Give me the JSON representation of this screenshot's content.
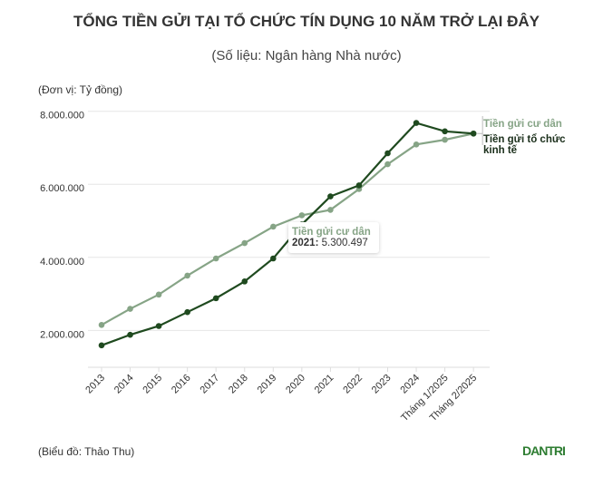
{
  "chart_data": {
    "type": "line",
    "title": "TỔNG TIỀN GỬI TẠI TỔ CHỨC TÍN DỤNG 10 NĂM TRỞ LẠI ĐÂY",
    "subtitle": "(Số liệu: Ngân hàng Nhà nước)",
    "ylabel": "(Đơn vị: Tỷ đồng)",
    "source": "(Biểu đồ: Thảo Thu)",
    "categories": [
      "2013",
      "2014",
      "2015",
      "2016",
      "2017",
      "2018",
      "2019",
      "2020",
      "2021",
      "2022",
      "2023",
      "2024",
      "Tháng 1/2025",
      "Tháng 2/2025"
    ],
    "yticks": [
      2000000,
      4000000,
      6000000,
      8000000
    ],
    "ytick_labels": [
      "2.000.000",
      "4.000.000",
      "6.000.000",
      "8.000.000"
    ],
    "ylim": [
      1000000,
      8350000
    ],
    "grid": true,
    "legend_placement": "right end labels",
    "series": [
      {
        "name": "Tiền gửi cư dân",
        "color": "#86a486",
        "values": [
          2150000,
          2590000,
          2980000,
          3500000,
          3970000,
          4390000,
          4840000,
          5150000,
          5300497,
          5870000,
          6550000,
          7090000,
          7220000,
          7390000
        ]
      },
      {
        "name": "Tiền gửi tổ chức kinh tế",
        "name_lines": [
          "Tiền gửi tổ chức",
          "kinh tế"
        ],
        "color": "#1f4a1f",
        "values": [
          1590000,
          1880000,
          2120000,
          2500000,
          2880000,
          3340000,
          3970000,
          4900000,
          5670000,
          5970000,
          6850000,
          7680000,
          7450000,
          7390000
        ]
      }
    ],
    "tooltip": {
      "series": "Tiền gửi cư dân",
      "year": "2021:",
      "value": "5.300.497"
    }
  },
  "logo": "DAN TRI"
}
